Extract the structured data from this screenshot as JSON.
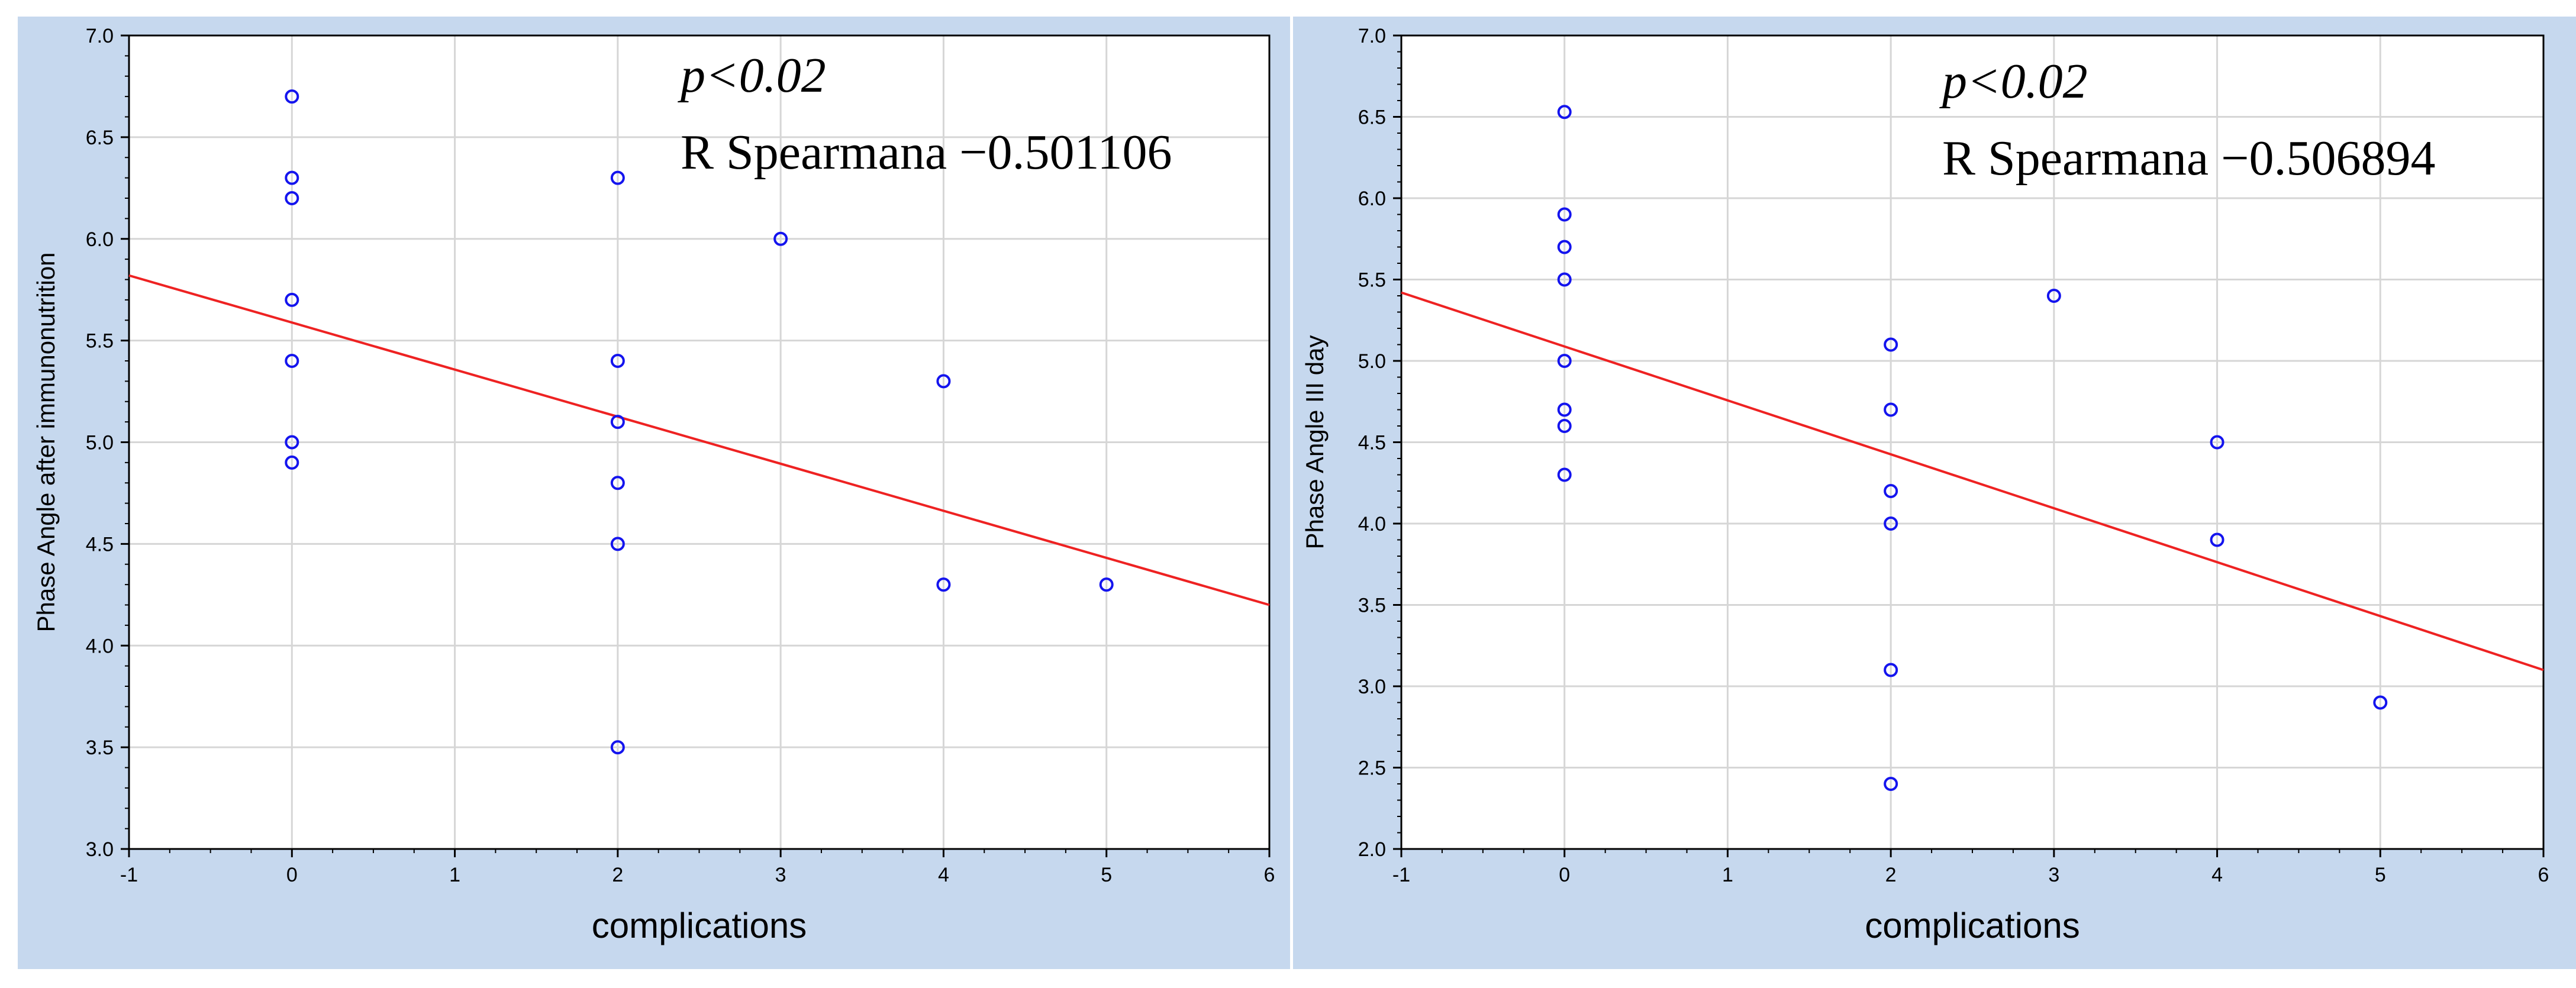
{
  "colors": {
    "panel_background": "#c6d8ee",
    "plot_background": "#ffffff",
    "grid": "#d6d6d6",
    "points": "#1414ee",
    "fit_line": "#ee2222"
  },
  "chart_data": [
    {
      "type": "scatter",
      "title": "",
      "xlabel": "complications",
      "ylabel": "Phase Angle after immunonutrition",
      "xlim": [
        -1,
        6
      ],
      "ylim": [
        3.0,
        7.0
      ],
      "xticks": [
        "-1",
        "0",
        "1",
        "2",
        "3",
        "4",
        "5",
        "6"
      ],
      "yticks": [
        "3.0",
        "3.5",
        "4.0",
        "4.5",
        "5.0",
        "5.5",
        "6.0",
        "6.5",
        "7.0"
      ],
      "grid": true,
      "series": [
        {
          "x": [
            0,
            0,
            0,
            0,
            0,
            0,
            0,
            2,
            2,
            2,
            2,
            2,
            2,
            3,
            4,
            4,
            5
          ],
          "y": [
            6.7,
            6.3,
            6.2,
            5.7,
            5.4,
            5.0,
            4.9,
            6.3,
            5.4,
            5.1,
            4.8,
            4.5,
            3.5,
            6.0,
            5.3,
            4.3,
            4.3
          ]
        }
      ],
      "fit_line": {
        "x": [
          -1,
          6
        ],
        "y": [
          5.82,
          4.2
        ]
      },
      "annotations": {
        "p_value": "p<0.02",
        "r_spearman": "R Spearmana −0.501106"
      }
    },
    {
      "type": "scatter",
      "title": "",
      "xlabel": "complications",
      "ylabel": "Phase Angle III day",
      "xlim": [
        -1,
        6
      ],
      "ylim": [
        2.0,
        7.0
      ],
      "xticks": [
        "-1",
        "0",
        "1",
        "2",
        "3",
        "4",
        "5",
        "6"
      ],
      "yticks": [
        "2.0",
        "2.5",
        "3.0",
        "3.5",
        "4.0",
        "4.5",
        "5.0",
        "5.5",
        "6.0",
        "6.5",
        "7.0"
      ],
      "grid": true,
      "series": [
        {
          "x": [
            0,
            0,
            0,
            0,
            0,
            0,
            0,
            0,
            2,
            2,
            2,
            2,
            2,
            2,
            3,
            4,
            4,
            5
          ],
          "y": [
            6.53,
            5.9,
            5.7,
            5.5,
            5.0,
            4.7,
            4.6,
            4.3,
            5.1,
            4.7,
            4.2,
            4.0,
            3.1,
            2.4,
            5.4,
            4.5,
            3.9,
            2.9
          ]
        }
      ],
      "fit_line": {
        "x": [
          -1,
          6
        ],
        "y": [
          5.42,
          3.1
        ]
      },
      "annotations": {
        "p_value": "p<0.02",
        "r_spearman": "R Spearmana −0.506894"
      }
    }
  ]
}
